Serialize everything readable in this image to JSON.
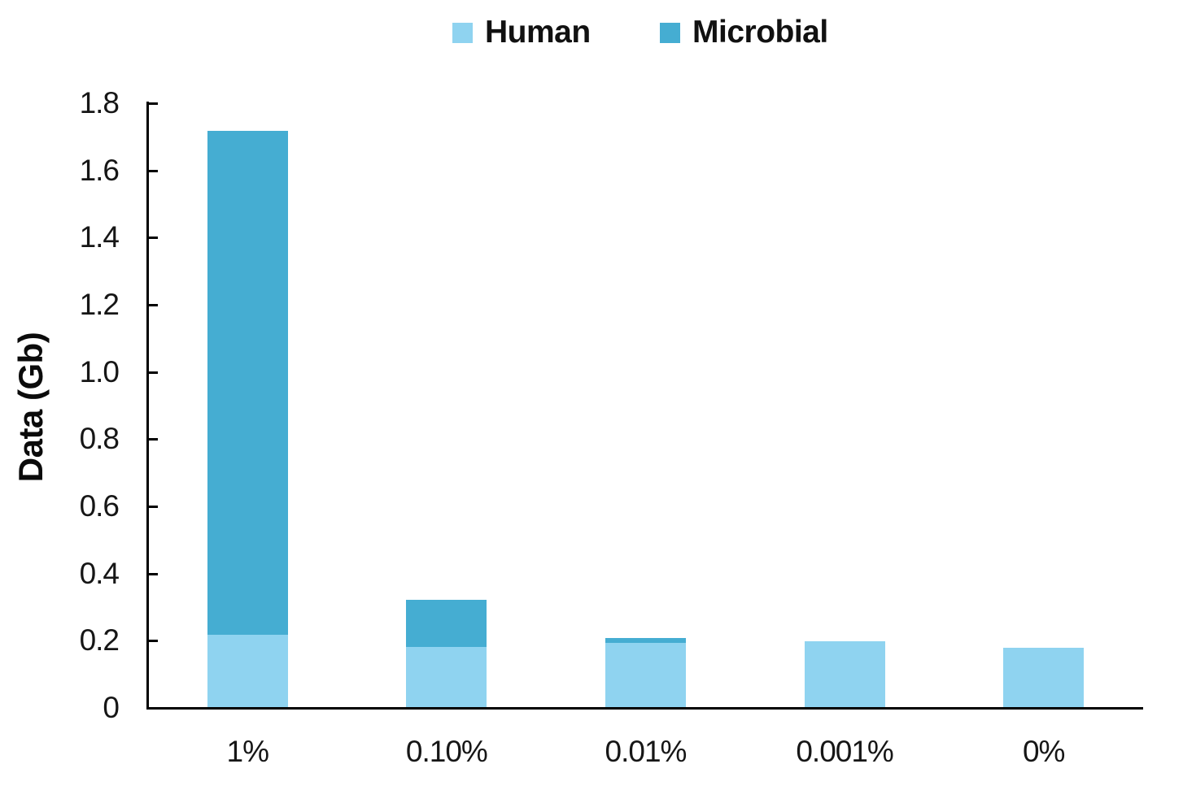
{
  "chart_data": {
    "type": "bar",
    "stacked": true,
    "title": "",
    "ylabel": "Data (Gb)",
    "xlabel": "",
    "categories": [
      "1%",
      "0.10%",
      "0.01%",
      "0.001%",
      "0%"
    ],
    "series": [
      {
        "name": "Human",
        "color": "#8FD3F0",
        "values": [
          0.215,
          0.18,
          0.19,
          0.197,
          0.176
        ]
      },
      {
        "name": "Microbial",
        "color": "#45ADD2",
        "values": [
          1.5,
          0.14,
          0.015,
          0,
          0
        ]
      }
    ],
    "ylim": [
      0,
      1.8
    ],
    "yticks": [
      {
        "value": 0,
        "label": "0"
      },
      {
        "value": 0.2,
        "label": "0.2"
      },
      {
        "value": 0.4,
        "label": "0.4"
      },
      {
        "value": 0.6,
        "label": "0.6"
      },
      {
        "value": 0.8,
        "label": "0.8"
      },
      {
        "value": 1.0,
        "label": "1.0"
      },
      {
        "value": 1.2,
        "label": "1.2"
      },
      {
        "value": 1.4,
        "label": "1.4"
      },
      {
        "value": 1.6,
        "label": "1.6"
      },
      {
        "value": 1.8,
        "label": "1.8"
      }
    ],
    "legend_position": "top",
    "grid": false,
    "axis_color": "#000000"
  }
}
